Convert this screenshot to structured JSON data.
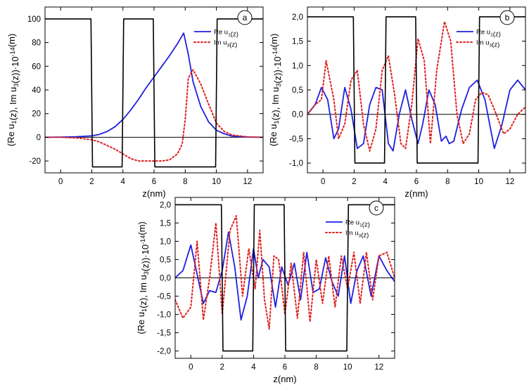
{
  "colors": {
    "re": "#1f1fe0",
    "im": "#e0201e",
    "barrier": "#000000"
  },
  "chart_data": [
    {
      "panel": "a",
      "type": "line",
      "xlabel": "z(nm)",
      "ylabel": "(Re u1(z), Im u3(z))·10^-14(m)",
      "xlim": [
        -1,
        13
      ],
      "ylim": [
        -30,
        110
      ],
      "xticks": [
        0,
        2,
        4,
        6,
        8,
        10,
        12
      ],
      "xtick_labels": [
        "0",
        "2",
        "4",
        "6",
        "8",
        "10",
        "12"
      ],
      "yticks": [
        -20,
        0,
        20,
        40,
        60,
        80,
        100
      ],
      "ytick_labels": [
        "-20",
        "0",
        "20",
        "40",
        "60",
        "80",
        "100"
      ],
      "legend_position": "top-right",
      "series": [
        {
          "name": "Re u1(z)",
          "style": "solid",
          "color": "#1f1fe0",
          "x": [
            -1,
            0,
            1,
            2,
            2.5,
            3,
            3.5,
            4,
            4.5,
            5,
            5.5,
            6,
            6.5,
            7,
            7.5,
            7.9,
            8.2,
            8.5,
            9,
            9.5,
            10,
            10.5,
            11,
            12,
            13
          ],
          "y": [
            0,
            0.2,
            0.5,
            1.2,
            2.5,
            5,
            9,
            15,
            23,
            32,
            42,
            51,
            60,
            69,
            79,
            88,
            70,
            47,
            26,
            13,
            6,
            3,
            1,
            0.2,
            0
          ]
        },
        {
          "name": "Im u3(z)",
          "style": "dotted",
          "color": "#e0201e",
          "x": [
            -1,
            0,
            1,
            2,
            2.5,
            3,
            3.5,
            4,
            4.5,
            5,
            5.5,
            6,
            6.5,
            7,
            7.5,
            7.8,
            8,
            8.2,
            8.5,
            9,
            9.5,
            10,
            10.5,
            11,
            12,
            13
          ],
          "y": [
            0,
            0,
            -0.5,
            -2,
            -4,
            -7,
            -10,
            -14,
            -18,
            -20,
            -20,
            -20,
            -20,
            -19,
            -14,
            -6,
            15,
            50,
            57,
            45,
            28,
            12,
            5,
            2,
            0.3,
            0
          ]
        },
        {
          "name": "",
          "style": "barrier",
          "color": "#000000",
          "x": [
            -1,
            1.95,
            2.05,
            3.95,
            4.05,
            5.95,
            6.05,
            9.95,
            10.05,
            13
          ],
          "y": [
            100,
            100,
            -25,
            -25,
            100,
            100,
            -25,
            -25,
            100,
            100
          ]
        }
      ],
      "legend": [
        "Re u1(z)",
        "Im u3(z)"
      ]
    },
    {
      "panel": "b",
      "type": "line",
      "xlabel": "z(nm)",
      "ylabel": "(Re u1(z), Im u3(z))·10^-14(m)",
      "xlim": [
        -1,
        13
      ],
      "ylim": [
        -1.2,
        2.2
      ],
      "xticks": [
        0,
        2,
        4,
        6,
        8,
        10,
        12
      ],
      "xtick_labels": [
        "0",
        "2",
        "4",
        "6",
        "8",
        "10",
        "12"
      ],
      "yticks": [
        -1.0,
        -0.5,
        0,
        0.5,
        1.0,
        1.5,
        2.0
      ],
      "ytick_labels": [
        "-1,0",
        "-0,5",
        "0,0",
        "0,5",
        "1,0",
        "1,5",
        "2,0"
      ],
      "legend_position": "top-right",
      "series": [
        {
          "name": "Re u1(z)",
          "style": "solid",
          "color": "#1f1fe0",
          "x": [
            -1,
            -0.5,
            -0.1,
            0.3,
            0.7,
            1.0,
            1.4,
            1.8,
            2.2,
            2.6,
            3.0,
            3.4,
            3.8,
            4.2,
            4.5,
            4.9,
            5.3,
            5.7,
            6.1,
            6.4,
            6.8,
            7.2,
            7.6,
            7.9,
            8.1,
            8.4,
            8.9,
            9.4,
            9.9,
            10.4,
            11.0,
            11.5,
            12.0,
            12.5,
            13.0
          ],
          "y": [
            0,
            0.2,
            0.55,
            0.3,
            -0.5,
            -0.3,
            0.55,
            0.1,
            -0.7,
            -0.6,
            0.2,
            0.55,
            0.5,
            -0.6,
            -0.75,
            0.0,
            0.5,
            -0.1,
            -0.6,
            -0.2,
            0.5,
            0.2,
            -0.55,
            -0.45,
            -0.6,
            -0.55,
            0.1,
            0.55,
            0.7,
            0.3,
            -0.7,
            -0.2,
            0.5,
            0.7,
            0.5
          ]
        },
        {
          "name": "Im u3(z)",
          "style": "dotted",
          "color": "#e0201e",
          "x": [
            -1,
            -0.5,
            -0.1,
            0.2,
            0.7,
            1.0,
            1.4,
            1.8,
            2.2,
            2.6,
            3.0,
            3.4,
            3.8,
            4.2,
            4.6,
            5.0,
            5.3,
            5.7,
            6.1,
            6.5,
            6.9,
            7.3,
            7.8,
            8.2,
            8.6,
            9.0,
            9.4,
            9.8,
            10.2,
            10.6,
            11.0,
            11.6,
            12.0,
            12.5,
            13.0
          ],
          "y": [
            0,
            0.2,
            0.3,
            1.1,
            0.3,
            -0.5,
            -0.2,
            0.7,
            0.9,
            -0.2,
            -0.75,
            -0.3,
            0.9,
            1.2,
            0.4,
            -0.6,
            -0.7,
            0.2,
            1.55,
            1.1,
            -0.6,
            0.9,
            1.9,
            1.5,
            0.0,
            -0.6,
            -0.4,
            0.3,
            0.45,
            0.4,
            0.1,
            -0.4,
            -0.3,
            0.0,
            0.15
          ]
        },
        {
          "name": "",
          "style": "barrier",
          "color": "#000000",
          "x": [
            -1,
            1.95,
            2.05,
            3.95,
            4.05,
            5.95,
            6.05,
            9.95,
            10.05,
            13
          ],
          "y": [
            2.0,
            2.0,
            -1.0,
            -1.0,
            2.0,
            2.0,
            -1.0,
            -1.0,
            2.0,
            2.0
          ]
        }
      ],
      "legend": [
        "Re u1(z)",
        "Im u3(z)"
      ]
    },
    {
      "panel": "c",
      "type": "line",
      "xlabel": "z(nm)",
      "ylabel": "(Re u1(z), Im u3(z))·10^-14(m)",
      "xlim": [
        -1,
        13
      ],
      "ylim": [
        -2.2,
        2.2
      ],
      "xticks": [
        0,
        2,
        4,
        6,
        8,
        10,
        12
      ],
      "xtick_labels": [
        "0",
        "2",
        "4",
        "6",
        "8",
        "10",
        "12"
      ],
      "yticks": [
        -2.0,
        -1.5,
        -1.0,
        -0.5,
        0,
        0.5,
        1.0,
        1.5,
        2.0
      ],
      "ytick_labels": [
        "-2,0",
        "-1,5",
        "-1,0",
        "-0,5",
        "0,0",
        "0,5",
        "1,0",
        "1,5",
        "2,0"
      ],
      "legend_position": "top-right",
      "series": [
        {
          "name": "Re u1(z)",
          "style": "solid",
          "color": "#1f1fe0",
          "x": [
            -1,
            -0.5,
            0.0,
            0.4,
            0.8,
            1.2,
            1.6,
            2.0,
            2.4,
            2.8,
            3.2,
            3.6,
            4.0,
            4.3,
            4.6,
            5.0,
            5.4,
            5.8,
            6.2,
            6.6,
            7.0,
            7.4,
            7.8,
            8.2,
            8.6,
            9.0,
            9.4,
            9.8,
            10.2,
            10.6,
            11.0,
            11.5,
            12.0,
            12.5,
            13.0
          ],
          "y": [
            0,
            0.2,
            0.9,
            0.1,
            -0.7,
            -0.35,
            -0.4,
            0.2,
            1.25,
            0.3,
            -1.15,
            -0.5,
            0.8,
            0.0,
            0.5,
            0.3,
            -0.8,
            0.3,
            -0.2,
            0.4,
            -0.6,
            0.7,
            -0.4,
            -0.3,
            0.55,
            -0.1,
            -0.5,
            0.6,
            -0.7,
            0.2,
            0.6,
            -0.5,
            0.6,
            0.2,
            -0.1
          ]
        },
        {
          "name": "Im u3(z)",
          "style": "dotted",
          "color": "#e0201e",
          "x": [
            -1,
            -0.5,
            0.0,
            0.4,
            0.8,
            1.2,
            1.6,
            2.0,
            2.5,
            2.9,
            3.3,
            3.7,
            4.1,
            4.4,
            4.7,
            5.0,
            5.3,
            5.6,
            6.0,
            6.4,
            6.8,
            7.2,
            7.6,
            8.0,
            8.4,
            8.8,
            9.2,
            9.6,
            10.0,
            10.4,
            10.8,
            11.2,
            11.6,
            12.0,
            12.5,
            13.0
          ],
          "y": [
            -0.6,
            -1.1,
            -0.8,
            1.0,
            -1.15,
            0.0,
            1.5,
            -1.0,
            1.3,
            1.7,
            -0.5,
            0.8,
            -0.3,
            1.3,
            -0.6,
            -1.4,
            0.6,
            0.5,
            -1.0,
            0.4,
            -1.1,
            0.7,
            -1.2,
            0.5,
            -0.7,
            0.6,
            -0.8,
            0.6,
            -0.3,
            0.7,
            -0.7,
            0.7,
            -0.6,
            0.6,
            0.7,
            0.0
          ]
        },
        {
          "name": "",
          "style": "barrier",
          "color": "#000000",
          "x": [
            -1,
            1.95,
            2.05,
            3.95,
            4.05,
            5.95,
            6.05,
            9.95,
            10.05,
            13
          ],
          "y": [
            2.0,
            2.0,
            -2.0,
            -2.0,
            2.0,
            2.0,
            -2.0,
            -2.0,
            2.0,
            2.0
          ]
        }
      ],
      "legend": [
        "Re u1(z)",
        "Im u3(z)"
      ]
    }
  ]
}
